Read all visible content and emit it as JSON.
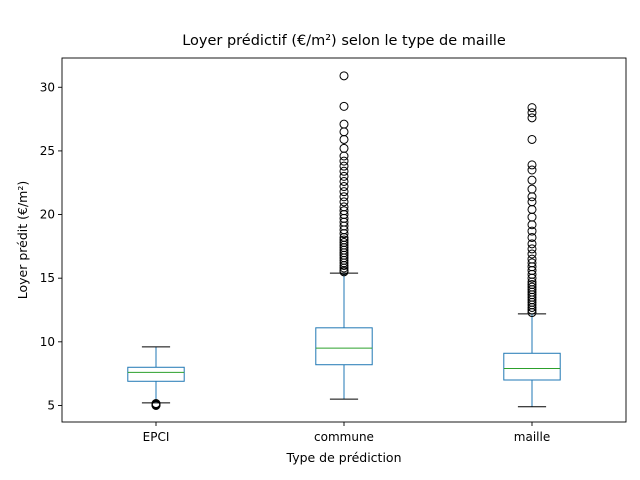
{
  "chart_data": {
    "type": "box",
    "title": "Loyer prédictif (€/m²) selon le type de maille",
    "xlabel": "Type de prédiction",
    "ylabel": "Loyer prédit (€/m²)",
    "ylim": [
      3.7,
      32.3
    ],
    "yticks": [
      "5",
      "10",
      "15",
      "20",
      "25",
      "30"
    ],
    "grid": false,
    "box_color": "#1f77b4",
    "median_color": "#2ca02c",
    "categories": [
      "EPCI",
      "commune",
      "maille"
    ],
    "boxes": [
      {
        "name": "EPCI",
        "whisker_low": 5.2,
        "q1": 6.9,
        "median": 7.6,
        "q3": 8.0,
        "whisker_high": 9.6,
        "outliers": [
          5.0,
          5.05,
          5.1,
          5.15
        ]
      },
      {
        "name": "commune",
        "whisker_low": 5.5,
        "q1": 8.2,
        "median": 9.5,
        "q3": 11.1,
        "whisker_high": 15.4,
        "outliers": [
          15.5,
          15.6,
          15.8,
          16.0,
          16.2,
          16.4,
          16.6,
          16.8,
          17.0,
          17.2,
          17.4,
          17.6,
          17.8,
          18.0,
          18.2,
          18.5,
          18.8,
          19.1,
          19.4,
          19.7,
          20.0,
          20.3,
          20.6,
          21.0,
          21.4,
          21.8,
          22.2,
          22.6,
          23.0,
          23.4,
          23.8,
          24.2,
          24.6,
          25.2,
          25.9,
          26.5,
          27.1,
          28.5,
          30.9
        ]
      },
      {
        "name": "maille",
        "whisker_low": 4.9,
        "q1": 7.0,
        "median": 7.9,
        "q3": 9.1,
        "whisker_high": 12.2,
        "outliers": [
          12.3,
          12.5,
          12.7,
          12.9,
          13.1,
          13.3,
          13.5,
          13.7,
          13.9,
          14.1,
          14.3,
          14.5,
          14.7,
          15.0,
          15.3,
          15.6,
          15.9,
          16.2,
          16.5,
          16.9,
          17.3,
          17.7,
          18.2,
          18.7,
          19.2,
          19.8,
          20.4,
          21.0,
          21.4,
          22.0,
          22.7,
          23.5,
          23.9,
          25.9,
          27.6,
          28.0,
          28.4
        ]
      }
    ]
  }
}
